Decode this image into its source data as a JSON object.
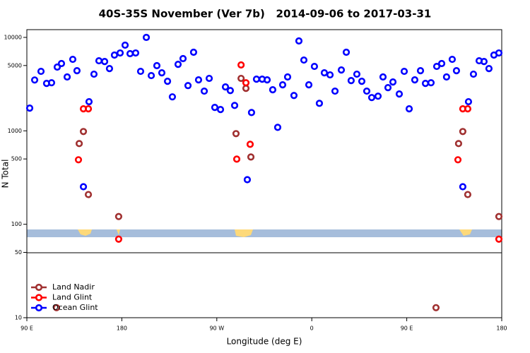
{
  "chart_data": {
    "type": "scatter",
    "title": "40S-35S November (Ver 7b)   2014-09-06 to 2017-03-31",
    "x_label": "Longitude (deg E)",
    "y_label": "N Total",
    "xlim": [
      90,
      540
    ],
    "ylim": [
      10,
      12100
    ],
    "log_y": true,
    "legend": "lower-left",
    "xticks": [
      {
        "value": 90,
        "label": "90 E"
      },
      {
        "value": 180,
        "label": "180"
      },
      {
        "value": 270,
        "label": "90 W"
      },
      {
        "value": 360,
        "label": "0"
      },
      {
        "value": 450,
        "label": "90 E"
      },
      {
        "value": 540,
        "label": "180"
      }
    ],
    "yticks": [
      10,
      50,
      100,
      500,
      1000,
      5000,
      10000
    ],
    "series": [
      {
        "name": "Land Nadir",
        "color": "#a03030",
        "x": [
          118.1,
          139.6,
          143.6,
          148.3,
          177.0,
          288.2,
          293.0,
          297.6,
          302.3,
          477.7,
          499.1,
          503.1,
          507.8,
          537.3
        ],
        "values": [
          12.8,
          731,
          983,
          208,
          121,
          933,
          3640,
          2850,
          525,
          12.8,
          731,
          983,
          208,
          121
        ]
      },
      {
        "name": "Land Glint",
        "color": "#ff0000",
        "x": [
          138.9,
          143.6,
          148.3,
          177.0,
          288.9,
          293.0,
          297.6,
          301.6,
          498.5,
          503.1,
          507.8,
          537.3
        ],
        "values": [
          490,
          1720,
          1720,
          69.3,
          498,
          5070,
          3270,
          718,
          490,
          1720,
          1720,
          69.3
        ]
      },
      {
        "name": "Ocean Glint",
        "color": "#0000ff",
        "x": [
          92.7,
          97.4,
          103.4,
          108.7,
          113.4,
          118.8,
          122.8,
          128.2,
          133.5,
          137.5,
          143.6,
          148.9,
          153.6,
          158.3,
          163.7,
          168.3,
          173.0,
          178.4,
          183.1,
          187.8,
          193.1,
          197.8,
          203.2,
          207.9,
          213.2,
          217.9,
          223.3,
          227.9,
          233.3,
          238.0,
          242.7,
          248.0,
          252.7,
          258.1,
          262.8,
          268.1,
          273.5,
          278.2,
          282.8,
          286.9,
          298.9,
          302.9,
          307.6,
          313.0,
          317.7,
          323.0,
          327.7,
          332.4,
          337.1,
          343.1,
          347.8,
          352.5,
          357.2,
          362.5,
          367.2,
          371.9,
          377.3,
          382.0,
          388.0,
          392.7,
          397.3,
          402.7,
          407.4,
          412.1,
          416.8,
          422.8,
          427.5,
          432.2,
          436.9,
          442.9,
          447.6,
          452.3,
          457.6,
          463.0,
          467.7,
          473.0,
          478.4,
          483.1,
          487.7,
          493.1,
          497.1,
          503.1,
          508.5,
          513.2,
          518.6,
          523.2,
          527.9,
          532.6,
          537.3
        ],
        "values": [
          1750,
          3500,
          4330,
          3220,
          3270,
          4810,
          5250,
          3770,
          5820,
          4400,
          252,
          2050,
          4040,
          5620,
          5520,
          4640,
          6470,
          6810,
          8260,
          6700,
          6810,
          4330,
          10000,
          3900,
          4980,
          4180,
          3390,
          2310,
          5150,
          5930,
          3050,
          6930,
          3510,
          2660,
          3640,
          1780,
          1690,
          2950,
          2700,
          1870,
          300,
          1570,
          3570,
          3570,
          3510,
          2750,
          1090,
          3110,
          3770,
          2390,
          9160,
          5720,
          3110,
          4890,
          1970,
          4180,
          3970,
          2660,
          4480,
          6930,
          3450,
          4040,
          3390,
          2660,
          2270,
          2350,
          3770,
          2900,
          3330,
          2480,
          4330,
          1720,
          3510,
          4400,
          3220,
          3270,
          4890,
          5250,
          3770,
          5820,
          4400,
          252,
          2050,
          4040,
          5620,
          5520,
          4640,
          6470,
          6810
        ]
      }
    ]
  }
}
